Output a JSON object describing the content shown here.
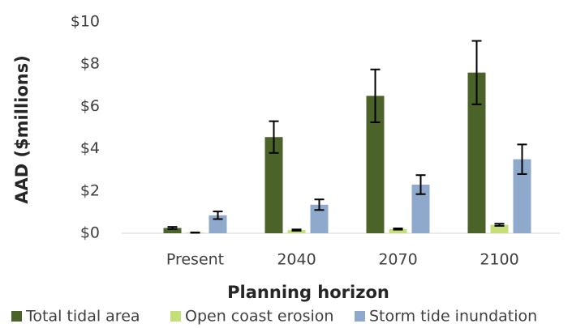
{
  "chart_data": {
    "type": "bar",
    "xlabel": "Planning horizon",
    "ylabel": "AAD ($millions)",
    "categories": [
      "Present",
      "2040",
      "2070",
      "2100"
    ],
    "series": [
      {
        "name": "Total tidal area",
        "color": "#4b6329",
        "values": [
          0.25,
          4.55,
          6.5,
          7.6
        ],
        "errors": [
          0.05,
          0.75,
          1.25,
          1.5
        ]
      },
      {
        "name": "Open coast erosion",
        "color": "#c4df7a",
        "values": [
          0.03,
          0.15,
          0.2,
          0.4
        ],
        "errors": [
          0.01,
          0.03,
          0.03,
          0.05
        ]
      },
      {
        "name": "Storm tide inundation",
        "color": "#8ea9cb",
        "values": [
          0.85,
          1.35,
          2.3,
          3.5
        ],
        "errors": [
          0.18,
          0.25,
          0.45,
          0.7
        ]
      }
    ],
    "ylim": [
      0,
      10
    ],
    "yticks": [
      {
        "value": 0,
        "label": "$0"
      },
      {
        "value": 2,
        "label": "$2"
      },
      {
        "value": 4,
        "label": "$4"
      },
      {
        "value": 6,
        "label": "$6"
      },
      {
        "value": 8,
        "label": "$8"
      },
      {
        "value": 10,
        "label": "$10"
      }
    ],
    "grid": false,
    "legend": "bottom"
  }
}
